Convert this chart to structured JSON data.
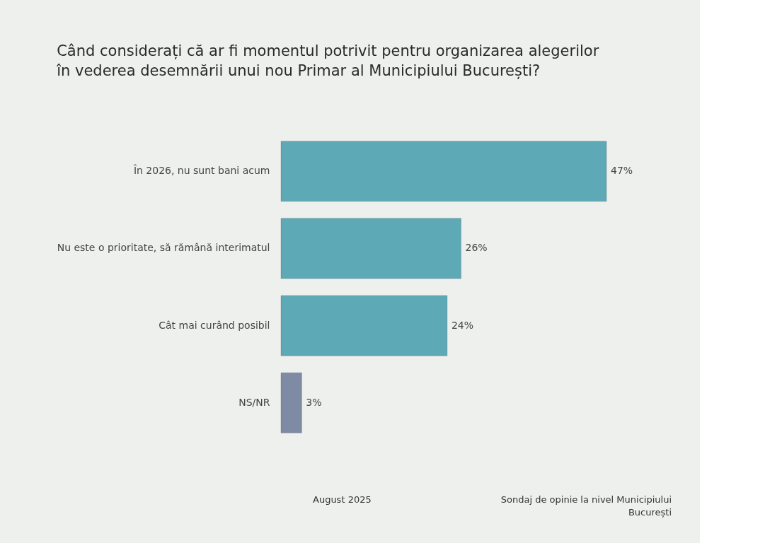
{
  "chart_data": {
    "type": "bar",
    "orientation": "horizontal",
    "title": "Când considerați că ar fi momentul potrivit pentru organizarea alegerilor\nîn vederea desemnării unui nou Primar al Municipiului București?",
    "categories": [
      "În 2026, nu sunt bani acum",
      "Nu este o prioritate, să rămână interimatul",
      "Cât mai curând posibil",
      "NS/NR"
    ],
    "values": [
      47,
      26,
      24,
      3
    ],
    "value_labels": [
      "47%",
      "26%",
      "24%",
      "3%"
    ],
    "colors": [
      "#5ea9b6",
      "#5ea9b6",
      "#5ea9b6",
      "#7f8aa5"
    ],
    "annotations": [
      "August 2025",
      "Sondaj de opinie la nivel Municipiului\nBucurești"
    ]
  }
}
